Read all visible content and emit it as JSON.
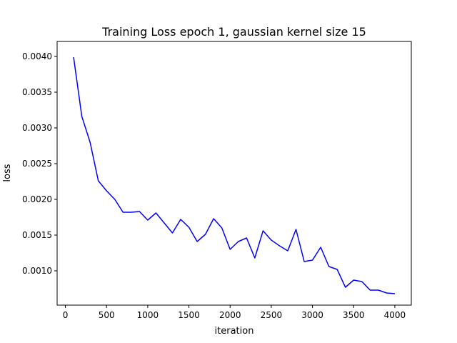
{
  "chart_data": {
    "type": "line",
    "title": "Training Loss epoch 1, gaussian kernel size 15",
    "xlabel": "iteration",
    "ylabel": "loss",
    "xlim": [
      -100,
      4200
    ],
    "ylim": [
      0.00052,
      0.00421
    ],
    "x_ticks": [
      0,
      500,
      1000,
      1500,
      2000,
      2500,
      3000,
      3500,
      4000
    ],
    "x_tick_labels": [
      "0",
      "500",
      "1000",
      "1500",
      "2000",
      "2500",
      "3000",
      "3500",
      "4000"
    ],
    "y_ticks": [
      0.001,
      0.0015,
      0.002,
      0.0025,
      0.003,
      0.0035,
      0.004
    ],
    "y_tick_labels": [
      "0.0010",
      "0.0015",
      "0.0020",
      "0.0025",
      "0.0030",
      "0.0035",
      "0.0040"
    ],
    "grid": false,
    "line_color": "#0000ff",
    "series": [
      {
        "x": [
          100,
          200,
          300,
          400,
          500,
          600,
          700,
          800,
          900,
          1000,
          1100,
          1200,
          1300,
          1400,
          1500,
          1600,
          1700,
          1800,
          1900,
          2000,
          2100,
          2200,
          2300,
          2400,
          2500,
          2600,
          2700,
          2800,
          2900,
          3000,
          3100,
          3200,
          3300,
          3400,
          3500,
          3600,
          3700,
          3800,
          3900,
          4000
        ],
        "values": [
          0.00399,
          0.00316,
          0.0028,
          0.00226,
          0.00212,
          0.002,
          0.00182,
          0.00182,
          0.00183,
          0.00171,
          0.00181,
          0.00167,
          0.00153,
          0.00172,
          0.00161,
          0.00141,
          0.00151,
          0.00173,
          0.0016,
          0.0013,
          0.00141,
          0.00146,
          0.00118,
          0.00156,
          0.00143,
          0.00135,
          0.00128,
          0.00158,
          0.00113,
          0.00115,
          0.00133,
          0.00106,
          0.00102,
          0.00077,
          0.00087,
          0.00085,
          0.00073,
          0.00073,
          0.00069,
          0.00068
        ]
      }
    ]
  }
}
